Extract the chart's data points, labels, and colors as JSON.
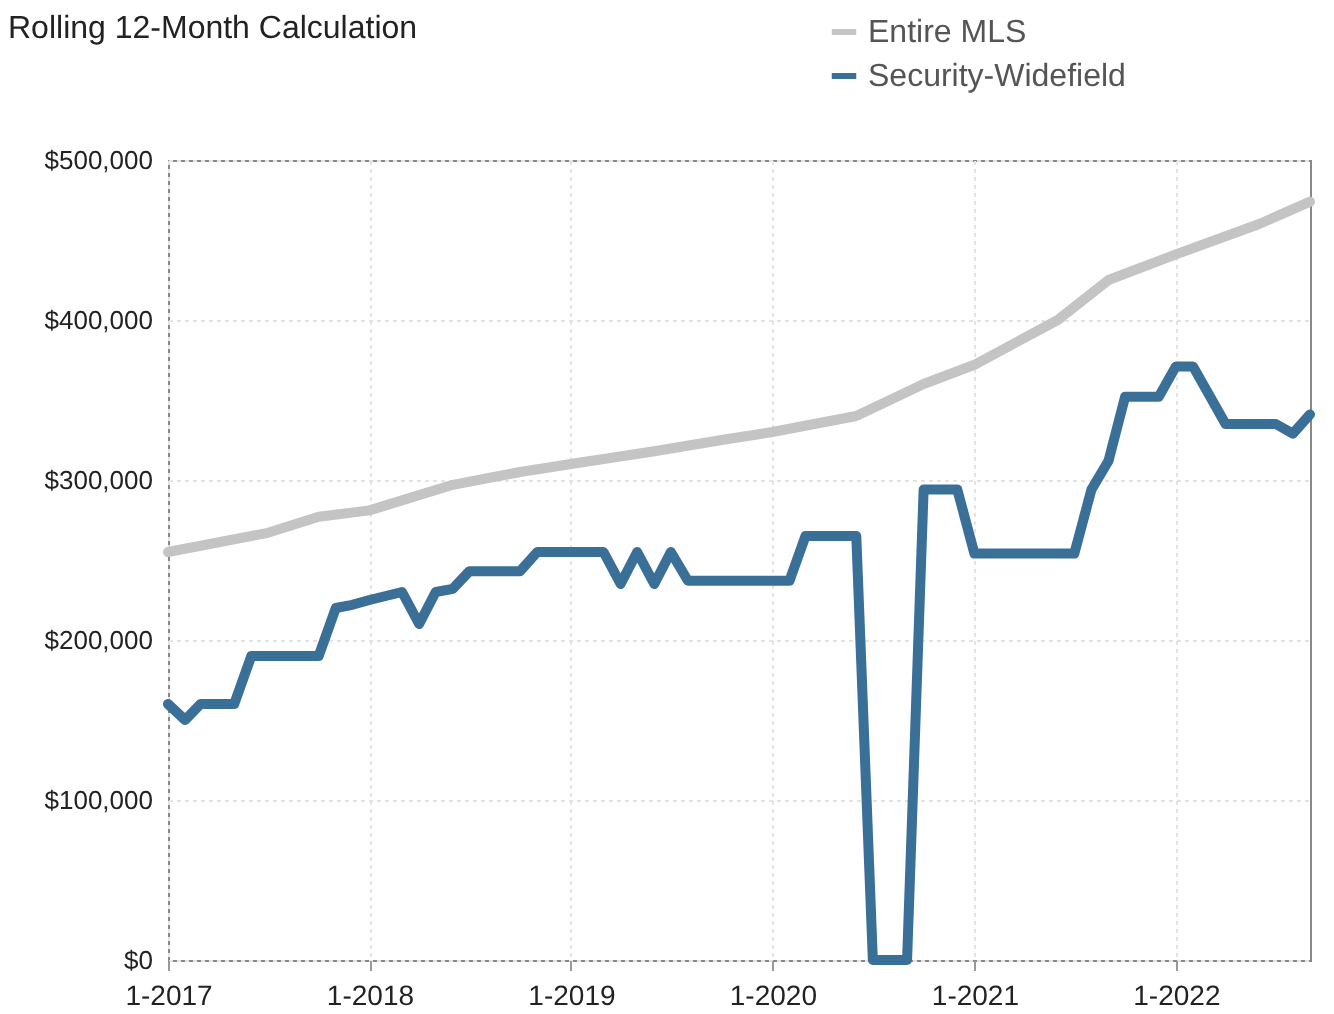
{
  "chart_data": {
    "type": "line",
    "title": "Rolling 12-Month Calculation",
    "series": [
      {
        "name": "Entire MLS",
        "color": "#c4c4c4",
        "x": [
          "2017-01",
          "2017-07",
          "2017-10",
          "2018-01",
          "2018-06",
          "2018-10",
          "2019-01",
          "2019-06",
          "2019-10",
          "2020-01",
          "2020-06",
          "2020-10",
          "2021-01",
          "2021-06",
          "2021-09",
          "2022-01",
          "2022-06",
          "2022-09"
        ],
        "values": [
          255000,
          267000,
          277000,
          281000,
          297000,
          305000,
          310000,
          318000,
          325000,
          330000,
          340000,
          360000,
          372000,
          400000,
          425000,
          441000,
          460000,
          474000
        ]
      },
      {
        "name": "Security-Widefield",
        "color": "#3a6f98",
        "x": [
          "2017-01",
          "2017-02",
          "2017-03",
          "2017-05",
          "2017-06",
          "2017-10",
          "2017-11",
          "2017-12",
          "2018-01",
          "2018-03",
          "2018-04",
          "2018-05",
          "2018-06",
          "2018-07",
          "2018-10",
          "2018-11",
          "2019-03",
          "2019-04",
          "2019-05",
          "2019-06",
          "2019-07",
          "2019-08",
          "2020-02",
          "2020-03",
          "2020-06",
          "2020-07",
          "2020-09",
          "2020-10",
          "2020-12",
          "2021-01",
          "2021-07",
          "2021-08",
          "2021-09",
          "2021-10",
          "2021-12",
          "2022-01",
          "2022-02",
          "2022-04",
          "2022-07",
          "2022-08",
          "2022-09"
        ],
        "values": [
          160000,
          150000,
          160000,
          160000,
          190000,
          190000,
          220000,
          222000,
          225000,
          230000,
          210000,
          230000,
          232000,
          243000,
          243000,
          255000,
          255000,
          235000,
          255000,
          235000,
          255000,
          237000,
          237000,
          265000,
          265000,
          0,
          0,
          294000,
          294000,
          254000,
          254000,
          294000,
          312000,
          352000,
          352000,
          371000,
          371000,
          335000,
          335000,
          329000,
          341000
        ]
      }
    ],
    "xlim": [
      "2017-01",
      "2022-09"
    ],
    "xticks": [
      {
        "value": "2017-01",
        "label": "1-2017"
      },
      {
        "value": "2018-01",
        "label": "1-2018"
      },
      {
        "value": "2019-01",
        "label": "1-2019"
      },
      {
        "value": "2020-01",
        "label": "1-2020"
      },
      {
        "value": "2021-01",
        "label": "1-2021"
      },
      {
        "value": "2022-01",
        "label": "1-2022"
      }
    ],
    "ylim": [
      0,
      500000
    ],
    "yticks": [
      {
        "value": 0,
        "label": "$0"
      },
      {
        "value": 100000,
        "label": "$100,000"
      },
      {
        "value": 200000,
        "label": "$200,000"
      },
      {
        "value": 300000,
        "label": "$300,000"
      },
      {
        "value": 400000,
        "label": "$400,000"
      },
      {
        "value": 500000,
        "label": "$500,000"
      }
    ],
    "grid": true,
    "legend": "top right",
    "line_style": "solid"
  }
}
